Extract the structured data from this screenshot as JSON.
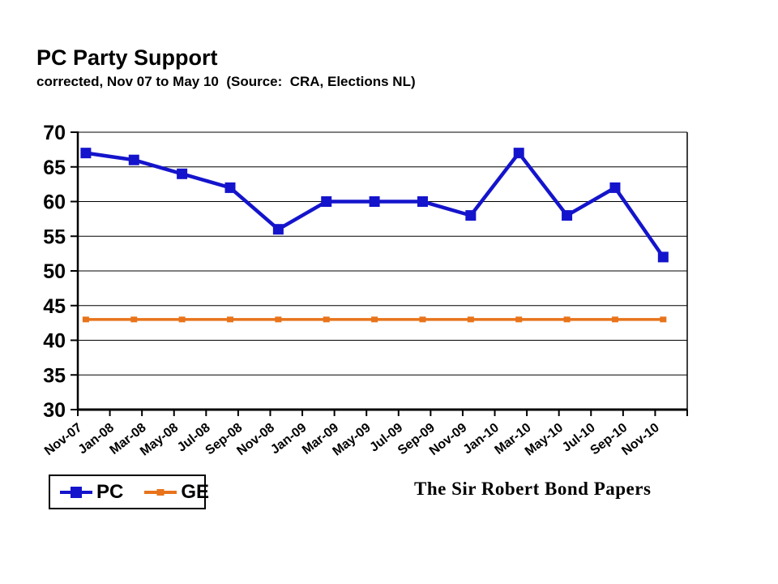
{
  "watermark": "The Sir Robert Bond Papers",
  "chart_data": {
    "type": "line",
    "title": "PC Party Support",
    "subtitle": "corrected, Nov 07 to May 10  (Source:  CRA, Elections NL)",
    "x_axis": {
      "tick_labels": [
        "Nov-07",
        "Jan-08",
        "Mar-08",
        "May-08",
        "Jul-08",
        "Sep-08",
        "Nov-08",
        "Jan-09",
        "Mar-09",
        "May-09",
        "Jul-09",
        "Sep-09",
        "Nov-09",
        "Jan-10",
        "Mar-10",
        "May-10",
        "Jul-10",
        "Sep-10",
        "Nov-10"
      ],
      "tick_interval_months": 2
    },
    "y_axis": {
      "min": 30,
      "max": 70,
      "step": 5,
      "tick_labels": [
        "70",
        "65",
        "60",
        "55",
        "50",
        "45",
        "40",
        "35",
        "30"
      ]
    },
    "grid": true,
    "legend_position": "bottom-left",
    "series": [
      {
        "name": "PC",
        "color": "#1414CC",
        "marker": "large-square",
        "x": [
          "Nov-07",
          "Feb-08",
          "May-08",
          "Aug-08",
          "Nov-08",
          "Feb-09",
          "May-09",
          "Aug-09",
          "Nov-09",
          "Feb-10",
          "May-10",
          "Aug-10",
          "Nov-10"
        ],
        "months_from_start": [
          0,
          3,
          6,
          9,
          12,
          15,
          18,
          21,
          24,
          27,
          30,
          33,
          36
        ],
        "values": [
          67,
          66,
          64,
          62,
          56,
          60,
          60,
          60,
          58,
          67,
          58,
          62,
          52
        ]
      },
      {
        "name": "GE",
        "color": "#E8731A",
        "marker": "small-square",
        "x": [
          "Nov-07",
          "Feb-08",
          "May-08",
          "Aug-08",
          "Nov-08",
          "Feb-09",
          "May-09",
          "Aug-09",
          "Nov-09",
          "Feb-10",
          "May-10",
          "Aug-10",
          "Nov-10"
        ],
        "months_from_start": [
          0,
          3,
          6,
          9,
          12,
          15,
          18,
          21,
          24,
          27,
          30,
          33,
          36
        ],
        "values": [
          43,
          43,
          43,
          43,
          43,
          43,
          43,
          43,
          43,
          43,
          43,
          43,
          43
        ]
      }
    ]
  }
}
